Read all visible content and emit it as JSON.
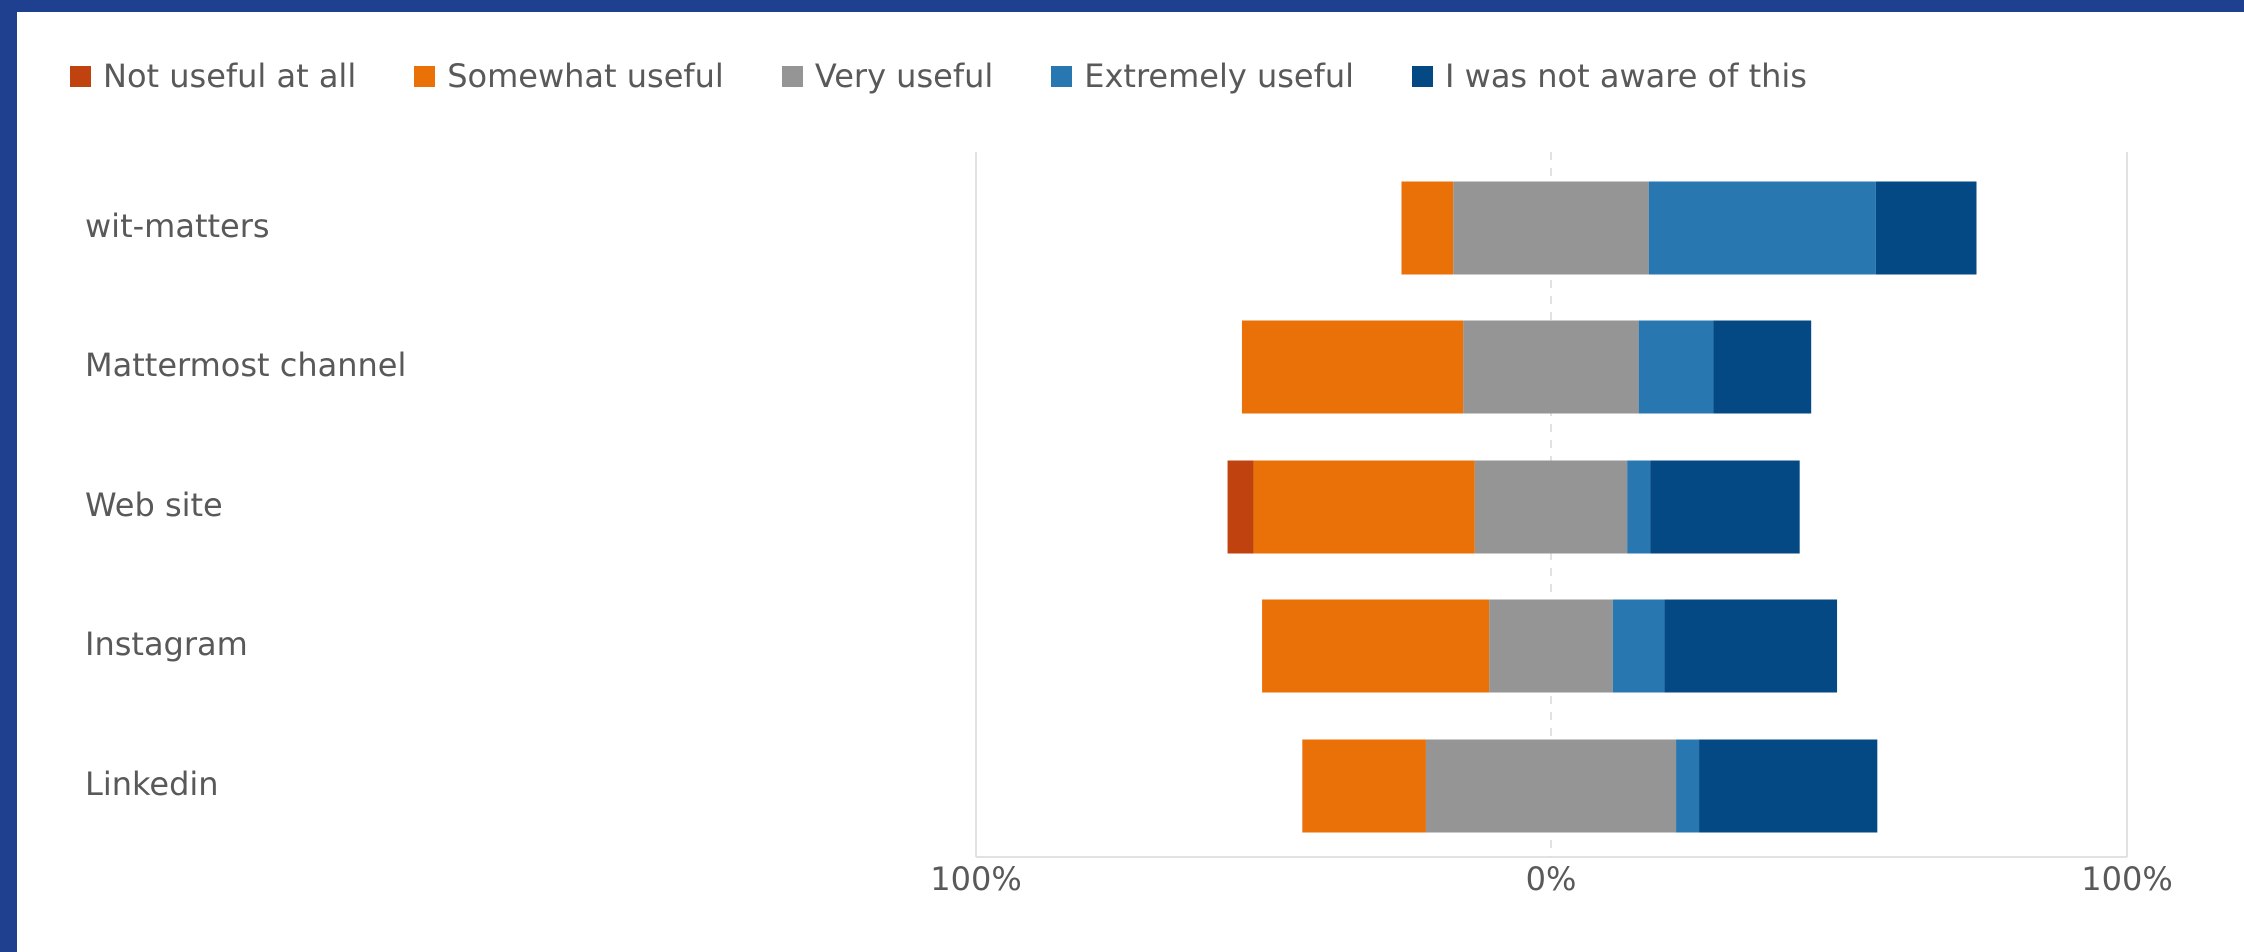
{
  "chart_data": {
    "type": "bar",
    "orientation": "horizontal",
    "layout": "diverging-stacked",
    "categories": [
      "wit-matters",
      "Mattermost channel",
      "Web site",
      "Instagram",
      "Linkedin"
    ],
    "series": [
      {
        "name": "Not useful at all",
        "color": "#c0420f",
        "side": "negative",
        "values": [
          0,
          0,
          4.5,
          0,
          0
        ]
      },
      {
        "name": "Somewhat useful",
        "color": "#ea7108",
        "side": "negative",
        "values": [
          9,
          38.5,
          38.5,
          39.5,
          21.5
        ]
      },
      {
        "name": "Very useful",
        "color": "#959595",
        "side": "split",
        "values": [
          34,
          30.5,
          26.5,
          21.5,
          43.5
        ]
      },
      {
        "name": "Extremely useful",
        "color": "#2977b0",
        "side": "positive",
        "values": [
          39.5,
          13,
          4,
          9,
          4
        ]
      },
      {
        "name": "I was not aware of this",
        "color": "#044983",
        "side": "positive",
        "values": [
          17.5,
          17,
          26,
          30,
          31
        ]
      }
    ],
    "xlim": [
      -100,
      100
    ],
    "x_ticks": [
      "100%",
      "0%",
      "100%"
    ],
    "legend_position": "top",
    "gridlines": "vertical"
  }
}
